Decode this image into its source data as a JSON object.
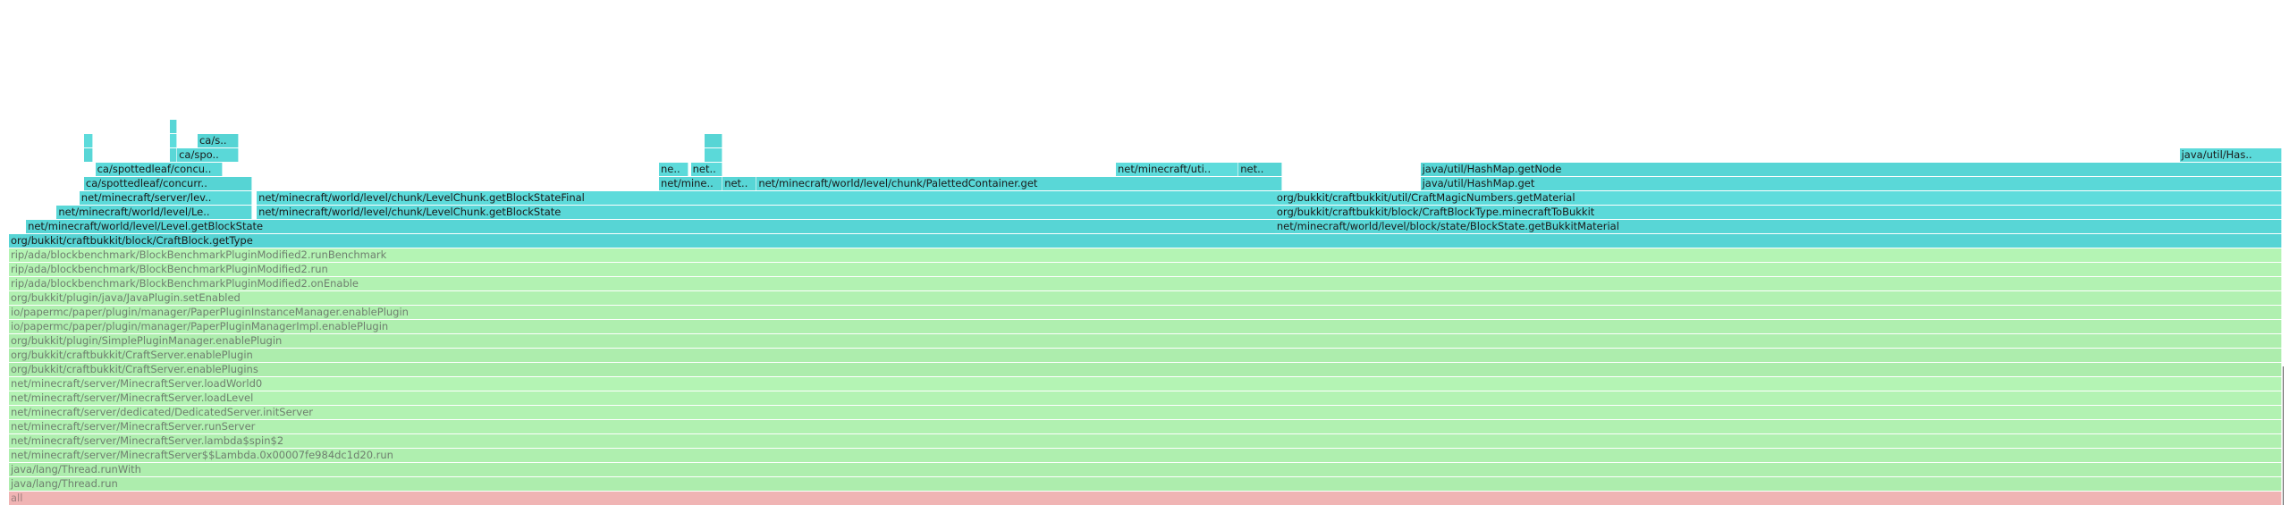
{
  "chart_data": {
    "type": "flamegraph",
    "title": "",
    "total_width_units": 1000,
    "colors": {
      "jit": "#5ad8d8",
      "interpreted": "#b0f0b0",
      "root": "#f4b8b8"
    },
    "frames": [
      {
        "name": "all",
        "level": 0,
        "start": 0,
        "width": 1000,
        "kind": "root",
        "label": "all"
      },
      {
        "name": "java/lang/Thread.run",
        "level": 1,
        "start": 0,
        "width": 1000,
        "kind": "interpreted",
        "label": "java/lang/Thread.run"
      },
      {
        "name": "java/lang/Thread.runWith",
        "level": 2,
        "start": 0,
        "width": 1000,
        "kind": "interpreted",
        "label": "java/lang/Thread.runWith"
      },
      {
        "name": "net/minecraft/server/MinecraftServer$$Lambda.0x00007fe984dc1d20.run",
        "level": 3,
        "start": 0,
        "width": 1000,
        "kind": "interpreted",
        "label": "net/minecraft/server/MinecraftServer$$Lambda.0x00007fe984dc1d20.run"
      },
      {
        "name": "net/minecraft/server/MinecraftServer.lambda$spin$2",
        "level": 4,
        "start": 0,
        "width": 1000,
        "kind": "interpreted",
        "label": "net/minecraft/server/MinecraftServer.lambda$spin$2"
      },
      {
        "name": "net/minecraft/server/MinecraftServer.runServer",
        "level": 5,
        "start": 0,
        "width": 1000,
        "kind": "interpreted",
        "label": "net/minecraft/server/MinecraftServer.runServer"
      },
      {
        "name": "net/minecraft/server/dedicated/DedicatedServer.initServer",
        "level": 6,
        "start": 0,
        "width": 1000,
        "kind": "interpreted",
        "label": "net/minecraft/server/dedicated/DedicatedServer.initServer"
      },
      {
        "name": "net/minecraft/server/MinecraftServer.loadLevel",
        "level": 7,
        "start": 0,
        "width": 1000,
        "kind": "interpreted",
        "label": "net/minecraft/server/MinecraftServer.loadLevel"
      },
      {
        "name": "net/minecraft/server/MinecraftServer.loadWorld0",
        "level": 8,
        "start": 0,
        "width": 1000,
        "kind": "interpreted",
        "label": "net/minecraft/server/MinecraftServer.loadWorld0"
      },
      {
        "name": "org/bukkit/craftbukkit/CraftServer.enablePlugins",
        "level": 9,
        "start": 0,
        "width": 1000,
        "kind": "interpreted",
        "label": "org/bukkit/craftbukkit/CraftServer.enablePlugins"
      },
      {
        "name": "org/bukkit/craftbukkit/CraftServer.enablePlugin",
        "level": 10,
        "start": 0,
        "width": 1000,
        "kind": "interpreted",
        "label": "org/bukkit/craftbukkit/CraftServer.enablePlugin"
      },
      {
        "name": "org/bukkit/plugin/SimplePluginManager.enablePlugin",
        "level": 11,
        "start": 0,
        "width": 1000,
        "kind": "interpreted",
        "label": "org/bukkit/plugin/SimplePluginManager.enablePlugin"
      },
      {
        "name": "io/papermc/paper/plugin/manager/PaperPluginManagerImpl.enablePlugin",
        "level": 12,
        "start": 0,
        "width": 1000,
        "kind": "interpreted",
        "label": "io/papermc/paper/plugin/manager/PaperPluginManagerImpl.enablePlugin"
      },
      {
        "name": "io/papermc/paper/plugin/manager/PaperPluginInstanceManager.enablePlugin",
        "level": 13,
        "start": 0,
        "width": 1000,
        "kind": "interpreted",
        "label": "io/papermc/paper/plugin/manager/PaperPluginInstanceManager.enablePlugin"
      },
      {
        "name": "org/bukkit/plugin/java/JavaPlugin.setEnabled",
        "level": 14,
        "start": 0,
        "width": 1000,
        "kind": "interpreted",
        "label": "org/bukkit/plugin/java/JavaPlugin.setEnabled"
      },
      {
        "name": "rip/ada/blockbenchmark/BlockBenchmarkPluginModified2.onEnable",
        "level": 15,
        "start": 0,
        "width": 1000,
        "kind": "interpreted",
        "label": "rip/ada/blockbenchmark/BlockBenchmarkPluginModified2.onEnable"
      },
      {
        "name": "rip/ada/blockbenchmark/BlockBenchmarkPluginModified2.run",
        "level": 16,
        "start": 0,
        "width": 1000,
        "kind": "interpreted",
        "label": "rip/ada/blockbenchmark/BlockBenchmarkPluginModified2.run"
      },
      {
        "name": "rip/ada/blockbenchmark/BlockBenchmarkPluginModified2.runBenchmark",
        "level": 17,
        "start": 0,
        "width": 1000,
        "kind": "interpreted",
        "label": "rip/ada/blockbenchmark/BlockBenchmarkPluginModified2.runBenchmark"
      },
      {
        "name": "org/bukkit/craftbukkit/block/CraftBlock.getType",
        "level": 18,
        "start": 0,
        "width": 1000,
        "kind": "jit",
        "label": "org/bukkit/craftbukkit/block/CraftBlock.getType"
      },
      {
        "name": "net/minecraft/world/level/Level.getBlockState",
        "level": 19,
        "start": 7.5,
        "width": 553,
        "kind": "jit",
        "label": "net/minecraft/world/level/Level.getBlockState"
      },
      {
        "name": "net/minecraft/world/level/block/state/BlockState.getBukkitMaterial",
        "level": 19,
        "start": 557,
        "width": 443,
        "kind": "jit",
        "label": "net/minecraft/world/level/block/state/BlockState.getBukkitMaterial"
      },
      {
        "name": "net/minecraft/world/level/LevelChunk.getBlockState",
        "level": 20,
        "start": 21,
        "width": 86,
        "kind": "jit",
        "label": "net/minecraft/world/level/Le.."
      },
      {
        "name": "net/minecraft/world/level/chunk/LevelChunk.getBlockState",
        "level": 20,
        "start": 109,
        "width": 451,
        "kind": "jit",
        "label": "net/minecraft/world/level/chunk/LevelChunk.getBlockState"
      },
      {
        "name": "org/bukkit/craftbukkit/block/CraftBlockType.minecraftToBukkit",
        "level": 20,
        "start": 557,
        "width": 443,
        "kind": "jit",
        "label": "org/bukkit/craftbukkit/block/CraftBlockType.minecraftToBukkit"
      },
      {
        "name": "net/minecraft/server/level/...",
        "level": 21,
        "start": 31,
        "width": 76,
        "kind": "jit",
        "label": "net/minecraft/server/lev.."
      },
      {
        "name": "net/minecraft/world/level/chunk/LevelChunk.getBlockStateFinal",
        "level": 21,
        "start": 109,
        "width": 451,
        "kind": "jit",
        "label": "net/minecraft/world/level/chunk/LevelChunk.getBlockStateFinal"
      },
      {
        "name": "org/bukkit/craftbukkit/util/CraftMagicNumbers.getMaterial",
        "level": 21,
        "start": 557,
        "width": 443,
        "kind": "jit",
        "label": "org/bukkit/craftbukkit/util/CraftMagicNumbers.getMaterial"
      },
      {
        "name": "ca/spottedleaf/concurrent...",
        "level": 22,
        "start": 33,
        "width": 74,
        "kind": "jit",
        "label": "ca/spottedleaf/concurr.."
      },
      {
        "name": "net/minecraft/...",
        "level": 22,
        "start": 286,
        "width": 28,
        "kind": "jit",
        "label": "net/mine.."
      },
      {
        "name": "net/...",
        "level": 22,
        "start": 314,
        "width": 15,
        "kind": "jit",
        "label": "net.."
      },
      {
        "name": "net/minecraft/world/level/chunk/PalettedContainer.get",
        "level": 22,
        "start": 329,
        "width": 231,
        "kind": "jit",
        "label": "net/minecraft/world/level/chunk/PalettedContainer.get"
      },
      {
        "name": "java/util/HashMap.get",
        "level": 22,
        "start": 621,
        "width": 379,
        "kind": "jit",
        "label": "java/util/HashMap.get"
      },
      {
        "name": "ca/spottedleaf/concurrent...",
        "level": 23,
        "start": 38,
        "width": 56,
        "kind": "jit",
        "label": "ca/spottedleaf/concu.."
      },
      {
        "name": "ne...",
        "level": 23,
        "start": 286,
        "width": 13,
        "kind": "jit",
        "label": "ne.."
      },
      {
        "name": "net/...",
        "level": 23,
        "start": 300,
        "width": 14,
        "kind": "jit",
        "label": "net.."
      },
      {
        "name": "net/minecraft/util/...",
        "level": 23,
        "start": 487,
        "width": 54,
        "kind": "jit",
        "label": "net/minecraft/uti.."
      },
      {
        "name": "net/...",
        "level": 23,
        "start": 541,
        "width": 19,
        "kind": "jit",
        "label": "net.."
      },
      {
        "name": "java/util/HashMap.getNode",
        "level": 23,
        "start": 621,
        "width": 379,
        "kind": "jit",
        "label": "java/util/HashMap.getNode"
      },
      {
        "name": "frame-a",
        "level": 24,
        "start": 33,
        "width": 4,
        "kind": "jit",
        "label": ""
      },
      {
        "name": "frame-b",
        "level": 24,
        "start": 71,
        "width": 3,
        "kind": "jit",
        "label": ""
      },
      {
        "name": "ca/spo...",
        "level": 24,
        "start": 74,
        "width": 27,
        "kind": "jit",
        "label": "ca/spo.."
      },
      {
        "name": "frame-c",
        "level": 24,
        "start": 306,
        "width": 8,
        "kind": "jit",
        "label": ""
      },
      {
        "name": "java/util/Has...",
        "level": 24,
        "start": 955,
        "width": 45,
        "kind": "jit",
        "label": "java/util/Has.."
      },
      {
        "name": "frame-d",
        "level": 25,
        "start": 33,
        "width": 4,
        "kind": "jit",
        "label": ""
      },
      {
        "name": "frame-e",
        "level": 25,
        "start": 71,
        "width": 3,
        "kind": "jit",
        "label": ""
      },
      {
        "name": "ca/s...",
        "level": 25,
        "start": 83,
        "width": 18,
        "kind": "jit",
        "label": "ca/s.."
      },
      {
        "name": "frame-f",
        "level": 25,
        "start": 306,
        "width": 8,
        "kind": "jit",
        "label": ""
      },
      {
        "name": "frame-g",
        "level": 26,
        "start": 71,
        "width": 3,
        "kind": "jit",
        "label": ""
      }
    ]
  }
}
